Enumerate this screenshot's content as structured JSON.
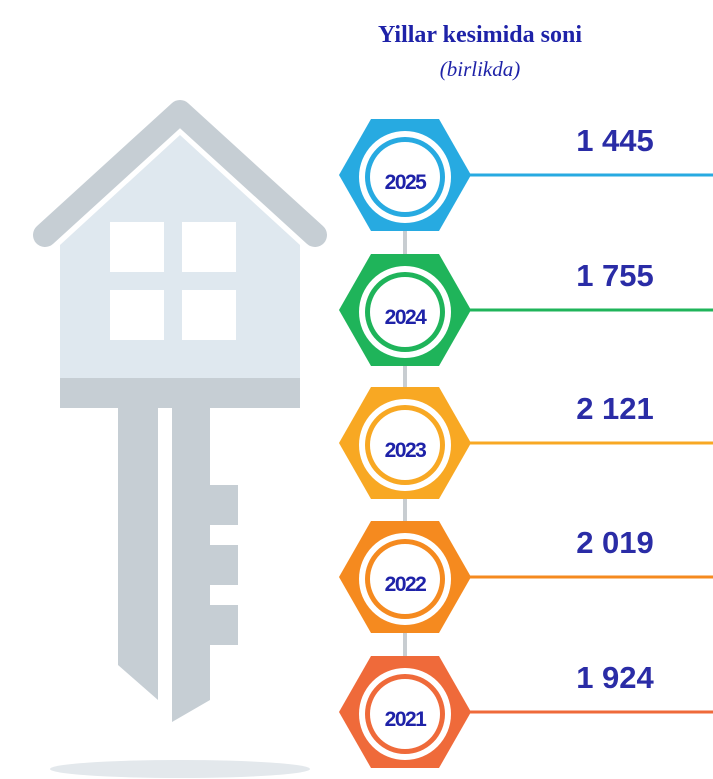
{
  "title": "Yillar kesimida soni",
  "subtitle": "(birlikda)",
  "items": [
    {
      "year": "2025",
      "value": "1 445",
      "color": "#27aae1"
    },
    {
      "year": "2024",
      "value": "1 755",
      "color": "#1fb45a"
    },
    {
      "year": "2023",
      "value": "2 121",
      "color": "#f8a823"
    },
    {
      "year": "2022",
      "value": "2 019",
      "color": "#f58a1f"
    },
    {
      "year": "2021",
      "value": "1 924",
      "color": "#ef6a3a"
    }
  ]
}
